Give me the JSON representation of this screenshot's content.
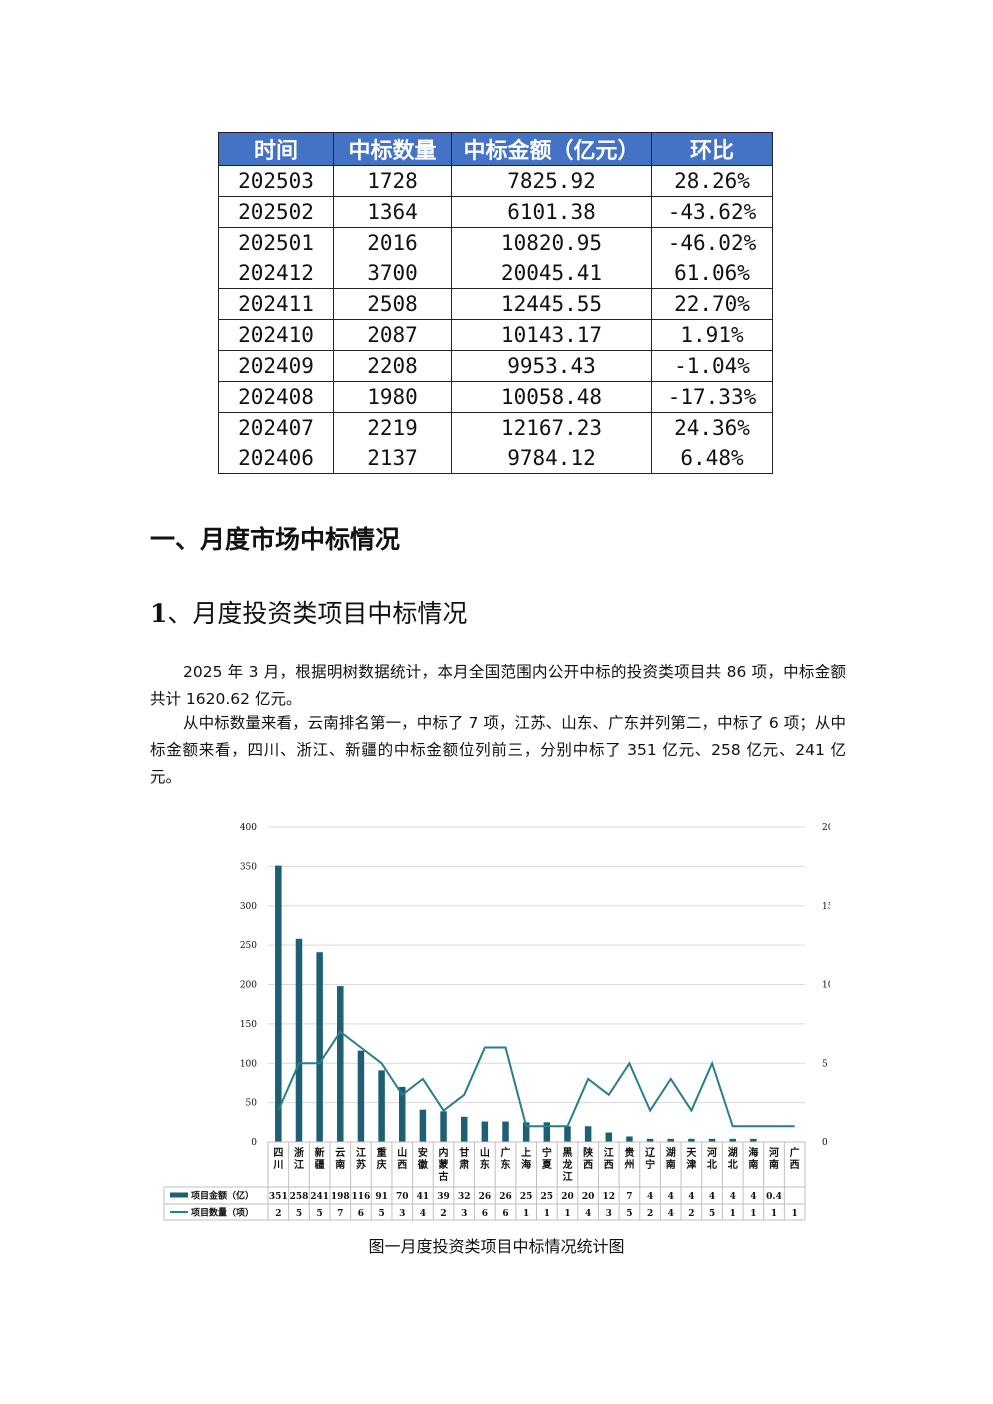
{
  "table": {
    "headers": [
      "时间",
      "中标数量",
      "中标金额（亿元）",
      "环比"
    ],
    "rows": [
      [
        "202503",
        "1728",
        "7825.92",
        "28.26%"
      ],
      [
        "202502",
        "1364",
        "6101.38",
        "-43.62%"
      ],
      [
        "202501",
        "2016",
        "10820.95",
        "-46.02%"
      ],
      [
        "202412",
        "3700",
        "20045.41",
        "61.06%"
      ],
      [
        "202411",
        "2508",
        "12445.55",
        "22.70%"
      ],
      [
        "202410",
        "2087",
        "10143.17",
        "1.91%"
      ],
      [
        "202409",
        "2208",
        "9953.43",
        "-1.04%"
      ],
      [
        "202408",
        "1980",
        "10058.48",
        "-17.33%"
      ],
      [
        "202407",
        "2219",
        "12167.23",
        "24.36%"
      ],
      [
        "202406",
        "2137",
        "9784.12",
        "6.48%"
      ]
    ],
    "header_color": "#4472c4"
  },
  "section": {
    "heading1": "一、月度市场中标情况",
    "heading2_num": "1",
    "heading2_text": "、月度投资类项目中标情况",
    "para1": "2025 年 3 月，根据明树数据统计，本月全国范围内公开中标的投资类项目共 86 项，中标金额共计 1620.62 亿元。",
    "para2": "从中标数量来看，云南排名第一，中标了 7 项，江苏、山东、广东并列第二，中标了 6 项；从中标金额来看，四川、浙江、新疆的中标金额位列前三，分别中标了 351 亿元、258 亿元、241 亿元。",
    "caption": "图一月度投资类项目中标情况统计图"
  },
  "chart_data": {
    "type": "bar",
    "categories": [
      "四川",
      "浙江",
      "新疆",
      "云南",
      "江苏",
      "重庆",
      "山西",
      "安徽",
      "内蒙古",
      "甘肃",
      "山东",
      "广东",
      "上海",
      "宁夏",
      "黑龙江",
      "陕西",
      "江西",
      "贵州",
      "辽宁",
      "湖南",
      "天津",
      "河北",
      "湖北",
      "海南",
      "河南",
      "广西"
    ],
    "series": [
      {
        "name": "项目金额（亿）",
        "type": "bar",
        "axis": "left",
        "values": [
          351,
          258,
          241,
          198,
          116,
          91,
          70,
          41,
          39,
          32,
          26,
          26,
          25,
          25,
          20,
          20,
          12,
          7,
          4,
          4,
          4,
          4,
          4,
          4,
          0.4,
          null
        ],
        "labels": [
          "351",
          "258",
          "241",
          "198",
          "116",
          "91",
          "70",
          "41",
          "39",
          "32",
          "26",
          "26",
          "25",
          "25",
          "20",
          "20",
          "12",
          "7",
          "4",
          "4",
          "4",
          "4",
          "4",
          "4",
          "0.4",
          ""
        ]
      },
      {
        "name": "项目数量（项）",
        "type": "line",
        "axis": "right",
        "values": [
          2,
          5,
          5,
          7,
          6,
          5,
          3,
          4,
          2,
          3,
          6,
          6,
          1,
          1,
          1,
          4,
          3,
          5,
          2,
          4,
          2,
          5,
          1,
          1,
          1,
          1
        ]
      }
    ],
    "ylim_left": [
      0,
      400
    ],
    "ylim_right": [
      0,
      20
    ],
    "yticks_left": [
      0,
      50,
      100,
      150,
      200,
      250,
      300,
      350,
      400
    ],
    "yticks_right": [
      0,
      5,
      10,
      15,
      20
    ],
    "grid": true,
    "legend": "data-table-bottom",
    "colors": {
      "bar": "#1e5f74",
      "line": "#2a7d8c",
      "grid": "#d9d9d9"
    }
  }
}
